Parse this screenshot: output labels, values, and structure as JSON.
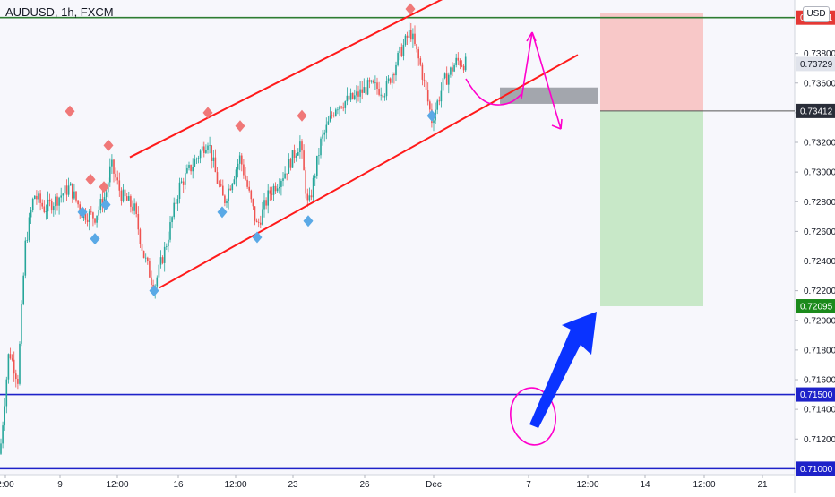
{
  "header": {
    "symbol": "AUDUSD, 1h, FXCM",
    "currency": "USD"
  },
  "colors": {
    "background": "#f7f7fc",
    "up_candle": "#26a69a",
    "down_candle": "#ef5350",
    "channel": "#ff1a1a",
    "resistance_line": "#2e7d32",
    "support_lines": "#1e22c9",
    "stop_zone": "#f8c8c8",
    "target_zone": "#c8e8c8",
    "high_marker": "#f07878",
    "low_marker": "#5aa9e6",
    "annotation": "#ff00cc",
    "arrow": "#0a33ff",
    "entry_box": "#a3a6ad"
  },
  "chart_data": {
    "type": "candlestick",
    "title": "AUDUSD, 1h, FXCM",
    "xlabel": "",
    "ylabel": "",
    "ylim": [
      0.7096,
      0.7416
    ],
    "y_ticks": [
      "0.73800",
      "0.73600",
      "0.73400",
      "0.73200",
      "0.73000",
      "0.72800",
      "0.72600",
      "0.72400",
      "0.72200",
      "0.72000",
      "0.71800",
      "0.71600",
      "0.71400",
      "0.71200",
      "0.71000"
    ],
    "x_ticks": [
      "2:00",
      "9",
      "12:00",
      "16",
      "12:00",
      "23",
      "26",
      "Dec",
      "7",
      "12:00",
      "14",
      "12:00",
      "21"
    ],
    "price_path": [
      {
        "x": 0,
        "p": 0.711
      },
      {
        "x": 10,
        "p": 0.718
      },
      {
        "x": 20,
        "p": 0.716
      },
      {
        "x": 28,
        "p": 0.725
      },
      {
        "x": 38,
        "p": 0.7285
      },
      {
        "x": 50,
        "p": 0.7275
      },
      {
        "x": 60,
        "p": 0.728
      },
      {
        "x": 78,
        "p": 0.729
      },
      {
        "x": 92,
        "p": 0.7272
      },
      {
        "x": 106,
        "p": 0.727
      },
      {
        "x": 118,
        "p": 0.7285
      },
      {
        "x": 124,
        "p": 0.7305
      },
      {
        "x": 135,
        "p": 0.7285
      },
      {
        "x": 150,
        "p": 0.7275
      },
      {
        "x": 160,
        "p": 0.7245
      },
      {
        "x": 172,
        "p": 0.7222
      },
      {
        "x": 185,
        "p": 0.725
      },
      {
        "x": 200,
        "p": 0.729
      },
      {
        "x": 215,
        "p": 0.7305
      },
      {
        "x": 232,
        "p": 0.7322
      },
      {
        "x": 242,
        "p": 0.7295
      },
      {
        "x": 250,
        "p": 0.728
      },
      {
        "x": 268,
        "p": 0.731
      },
      {
        "x": 287,
        "p": 0.7263
      },
      {
        "x": 300,
        "p": 0.7285
      },
      {
        "x": 318,
        "p": 0.73
      },
      {
        "x": 335,
        "p": 0.732
      },
      {
        "x": 344,
        "p": 0.7275
      },
      {
        "x": 358,
        "p": 0.732
      },
      {
        "x": 375,
        "p": 0.7345
      },
      {
        "x": 395,
        "p": 0.735
      },
      {
        "x": 412,
        "p": 0.7358
      },
      {
        "x": 430,
        "p": 0.7355
      },
      {
        "x": 445,
        "p": 0.7378
      },
      {
        "x": 458,
        "p": 0.7395
      },
      {
        "x": 470,
        "p": 0.737
      },
      {
        "x": 482,
        "p": 0.7335
      },
      {
        "x": 495,
        "p": 0.736
      },
      {
        "x": 510,
        "p": 0.7375
      },
      {
        "x": 520,
        "p": 0.7373
      }
    ],
    "swing_highs": [
      {
        "x": 78,
        "p": 0.7341
      },
      {
        "x": 101,
        "p": 0.7295
      },
      {
        "x": 116,
        "p": 0.729
      },
      {
        "x": 121,
        "p": 0.7318
      },
      {
        "x": 232,
        "p": 0.734
      },
      {
        "x": 268,
        "p": 0.7331
      },
      {
        "x": 337,
        "p": 0.7338
      },
      {
        "x": 458,
        "p": 0.741
      }
    ],
    "swing_lows": [
      {
        "x": 92,
        "p": 0.7273
      },
      {
        "x": 106,
        "p": 0.7255
      },
      {
        "x": 118,
        "p": 0.7278
      },
      {
        "x": 172,
        "p": 0.722
      },
      {
        "x": 248,
        "p": 0.7273
      },
      {
        "x": 287,
        "p": 0.7256
      },
      {
        "x": 344,
        "p": 0.7267
      },
      {
        "x": 482,
        "p": 0.7338
      }
    ],
    "channel": {
      "upper": [
        {
          "x": 145,
          "p": 0.731
        },
        {
          "x": 505,
          "p": 0.742
        }
      ],
      "lower": [
        {
          "x": 178,
          "p": 0.7222
        },
        {
          "x": 645,
          "p": 0.7379
        }
      ]
    },
    "horizontal_levels": [
      {
        "price": 0.74041,
        "label": "0.74041",
        "color": "#2e7d32",
        "tag_color": "#e53935"
      },
      {
        "price": 0.715,
        "label": "0.71500",
        "color": "#1e22c9",
        "tag_color": "#1e22c9"
      },
      {
        "price": 0.71,
        "label": "0.71000",
        "color": "#1e22c9",
        "tag_color": "#1e22c9"
      }
    ],
    "last_price": {
      "price": 0.73729,
      "label": "0.73729"
    },
    "position": {
      "x_start": 670,
      "x_end": 785,
      "entry": 0.73412,
      "entry_label": "0.73412",
      "stop": 0.74041,
      "target": 0.72095,
      "target_label": "0.72095"
    },
    "entry_box": {
      "x_start": 558,
      "x_end": 667,
      "p_top": 0.7357,
      "p_bottom": 0.7346
    }
  }
}
